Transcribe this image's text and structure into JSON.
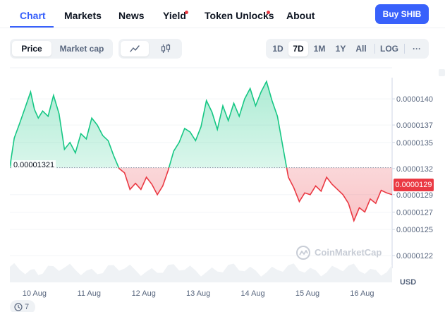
{
  "tabs": [
    {
      "label": "Chart",
      "active": true
    },
    {
      "label": "Markets",
      "active": false
    },
    {
      "label": "News",
      "active": false
    },
    {
      "label": "Yield",
      "active": false,
      "dot": true
    },
    {
      "label": "Token Unlocks",
      "active": false,
      "dot": true
    },
    {
      "label": "About",
      "active": false
    }
  ],
  "buy_button": "Buy SHIB",
  "metric_toggle": {
    "options": [
      "Price",
      "Market cap"
    ],
    "selected": "Price"
  },
  "chart_style_toggle": {
    "options": [
      "line-chart-icon",
      "candlestick-icon"
    ],
    "selected": "line-chart-icon"
  },
  "ranges": {
    "options": [
      "1D",
      "7D",
      "1M",
      "1Y",
      "All"
    ],
    "selected": "7D",
    "log": "LOG",
    "more": "···"
  },
  "colors": {
    "accent": "#3861fb",
    "up": "#16c784",
    "down": "#ea3943"
  },
  "watermark": "CoinMarketCap",
  "currency": "USD",
  "comments_count": "7",
  "chart_data": {
    "type": "line",
    "baseline": 1.321e-05,
    "baseline_label": "0.00001321",
    "current_price_label": "0.0000129",
    "current_price": 1.29e-05,
    "y_ticks": [
      "0.0000140",
      "0.0000137",
      "0.0000135",
      "0.0000132",
      "0.0000129",
      "0.0000127",
      "0.0000125",
      "0.0000122"
    ],
    "y_tick_values": [
      1.4e-05,
      1.37e-05,
      1.35e-05,
      1.32e-05,
      1.29e-05,
      1.27e-05,
      1.25e-05,
      1.22e-05
    ],
    "x_ticks": [
      "10 Aug",
      "11 Aug",
      "12 Aug",
      "13 Aug",
      "14 Aug",
      "15 Aug",
      "16 Aug"
    ],
    "x_tick_values": [
      0.45,
      1.45,
      2.45,
      3.45,
      4.45,
      5.45,
      6.45
    ],
    "x_range": [
      0,
      7.0
    ],
    "y_range": [
      1.212e-05,
      1.426e-05
    ],
    "x": [
      0,
      0.08,
      0.18,
      0.28,
      0.38,
      0.45,
      0.52,
      0.6,
      0.7,
      0.8,
      0.9,
      1.0,
      1.1,
      1.2,
      1.3,
      1.4,
      1.5,
      1.6,
      1.7,
      1.8,
      1.9,
      2.0,
      2.1,
      2.2,
      2.3,
      2.4,
      2.5,
      2.6,
      2.7,
      2.8,
      2.9,
      3.0,
      3.1,
      3.2,
      3.3,
      3.4,
      3.5,
      3.6,
      3.7,
      3.8,
      3.9,
      4.0,
      4.1,
      4.2,
      4.3,
      4.4,
      4.5,
      4.6,
      4.7,
      4.8,
      4.9,
      5.0,
      5.1,
      5.2,
      5.3,
      5.4,
      5.5,
      5.6,
      5.7,
      5.8,
      5.9,
      6.0,
      6.1,
      6.2,
      6.3,
      6.4,
      6.5,
      6.6,
      6.7,
      6.8,
      6.9,
      7.0
    ],
    "y": [
      1.322e-05,
      1.355e-05,
      1.372e-05,
      1.39e-05,
      1.408e-05,
      1.388e-05,
      1.378e-05,
      1.386e-05,
      1.38e-05,
      1.404e-05,
      1.383e-05,
      1.342e-05,
      1.35e-05,
      1.338e-05,
      1.36e-05,
      1.354e-05,
      1.378e-05,
      1.37e-05,
      1.358e-05,
      1.352e-05,
      1.335e-05,
      1.32e-05,
      1.315e-05,
      1.296e-05,
      1.303e-05,
      1.296e-05,
      1.31e-05,
      1.302e-05,
      1.29e-05,
      1.3e-05,
      1.318e-05,
      1.34e-05,
      1.35e-05,
      1.366e-05,
      1.362e-05,
      1.352e-05,
      1.368e-05,
      1.398e-05,
      1.385e-05,
      1.365e-05,
      1.392e-05,
      1.375e-05,
      1.395e-05,
      1.38e-05,
      1.4e-05,
      1.412e-05,
      1.392e-05,
      1.408e-05,
      1.42e-05,
      1.398e-05,
      1.38e-05,
      1.345e-05,
      1.31e-05,
      1.298e-05,
      1.282e-05,
      1.292e-05,
      1.29e-05,
      1.3e-05,
      1.294e-05,
      1.31e-05,
      1.302e-05,
      1.296e-05,
      1.29e-05,
      1.28e-05,
      1.26e-05,
      1.275e-05,
      1.27e-05,
      1.285e-05,
      1.28e-05,
      1.295e-05,
      1.292e-05,
      1.29e-05
    ]
  }
}
